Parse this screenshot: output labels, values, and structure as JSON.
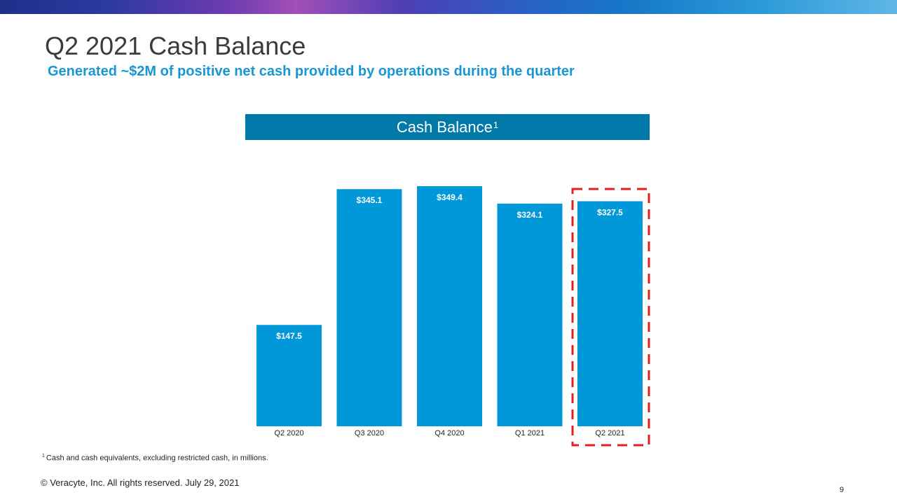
{
  "slide": {
    "title": "Q2 2021 Cash Balance",
    "subtitle": "Generated ~$2M of positive net cash provided by operations during the quarter",
    "footnote_marker": "1",
    "footnote_text": "Cash and cash equivalents, excluding restricted cash, in millions.",
    "copyright": "© Veracyte, Inc.  All rights reserved. July 29, 2021",
    "page_number": "9"
  },
  "colors": {
    "bar": "#0098d8",
    "header_bg": "#0079a8",
    "highlight_border": "#e02020",
    "title": "#3b3b3b",
    "subtitle": "#1a96d5"
  },
  "chart_data": {
    "type": "bar",
    "title": "Cash Balance",
    "title_superscript": "1",
    "categories": [
      "Q2 2020",
      "Q3 2020",
      "Q4 2020",
      "Q1 2021",
      "Q2 2021"
    ],
    "values": [
      147.5,
      345.1,
      349.4,
      324.1,
      327.5
    ],
    "value_labels": [
      "$147.5",
      "$345.1",
      "$349.4",
      "$324.1",
      "$327.5"
    ],
    "ylim": [
      0,
      349.4
    ],
    "grid": false,
    "legend": "none",
    "highlighted_category": "Q2 2021"
  }
}
